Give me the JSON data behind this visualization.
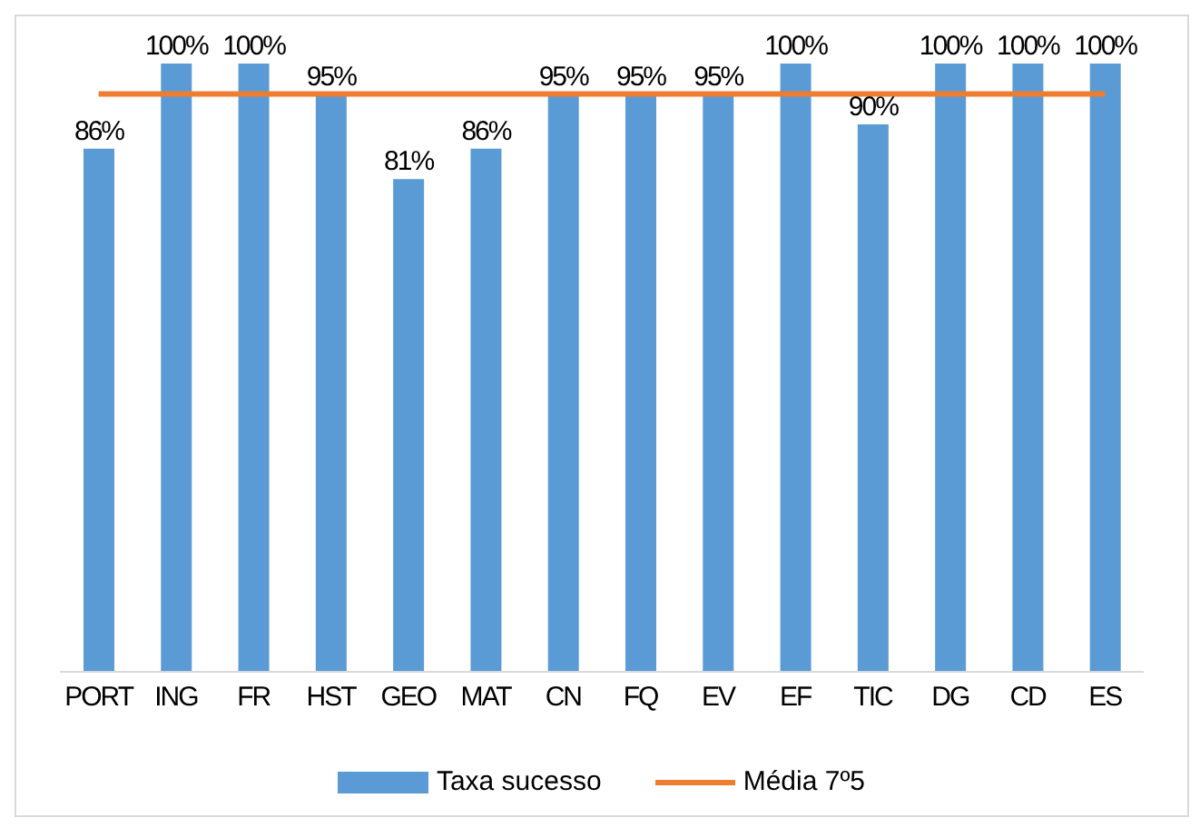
{
  "chart_data": {
    "type": "bar",
    "categories": [
      "PORT",
      "ING",
      "FR",
      "HST",
      "GEO",
      "MAT",
      "CN",
      "FQ",
      "EV",
      "EF",
      "TIC",
      "DG",
      "CD",
      "ES"
    ],
    "series": [
      {
        "name": "Taxa sucesso",
        "color": "#5b9bd5",
        "values": [
          86,
          100,
          100,
          95,
          81,
          86,
          95,
          95,
          95,
          100,
          90,
          100,
          100,
          100
        ],
        "value_labels": [
          "86%",
          "100%",
          "100%",
          "95%",
          "81%",
          "86%",
          "95%",
          "95%",
          "95%",
          "100%",
          "90%",
          "100%",
          "100%",
          "100%"
        ]
      },
      {
        "name": "Média 7º5",
        "type": "line",
        "color": "#ed7d31",
        "values": [
          95,
          95,
          95,
          95,
          95,
          95,
          95,
          95,
          95,
          95,
          95,
          95,
          95,
          95
        ]
      }
    ],
    "legend": "bottom",
    "grid": false,
    "marker": "none"
  }
}
